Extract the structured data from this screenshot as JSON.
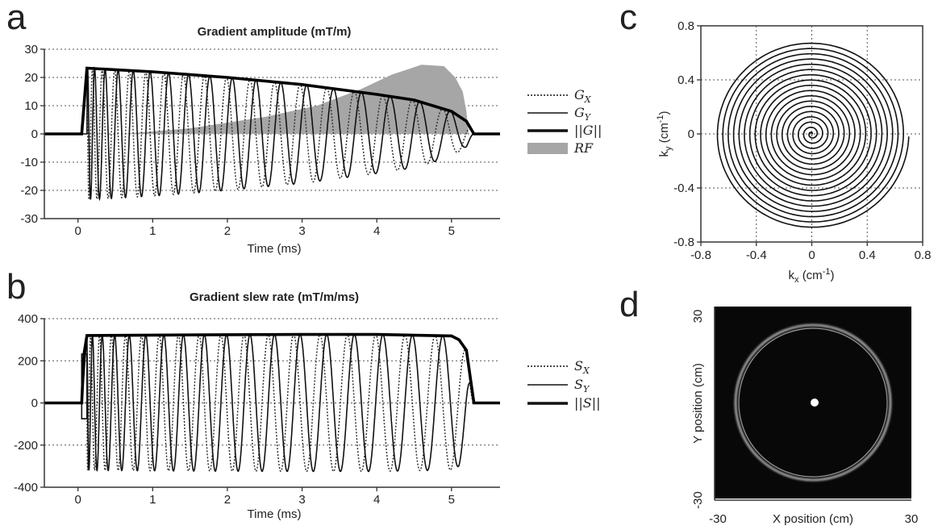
{
  "chart_data": [
    {
      "id": "a",
      "type": "line",
      "panel_label": "a",
      "title": "Gradient amplitude (mT/m)",
      "xlabel": "Time (ms)",
      "ylabel": "",
      "xlim": [
        -0.45,
        5.65
      ],
      "ylim": [
        -30,
        30
      ],
      "xticks": [
        "0",
        "1",
        "2",
        "3",
        "4",
        "5"
      ],
      "yticks": [
        "30",
        "20",
        "10",
        "0",
        "-10",
        "-20",
        "-30"
      ],
      "grid": "horizontal dotted",
      "legend_position": "right",
      "series": [
        {
          "name": "G",
          "sub": "X",
          "style": "dotted",
          "envelope_t": [
            0.12,
            1,
            2,
            3,
            4,
            4.5,
            5,
            5.2,
            5.3
          ],
          "envelope_amp": [
            23.3,
            22,
            20,
            17.5,
            14,
            12,
            8,
            4.5,
            0
          ]
        },
        {
          "name": "G",
          "sub": "Y",
          "style": "solid"
        },
        {
          "name": "||G||",
          "style": "thick",
          "t": [
            -0.45,
            0.05,
            0.12,
            1,
            2,
            3,
            4,
            4.5,
            5,
            5.2,
            5.3,
            5.65
          ],
          "v": [
            0,
            0,
            23.3,
            22,
            20,
            17.5,
            14,
            12,
            8,
            4.5,
            0,
            0
          ]
        },
        {
          "name": "RF",
          "style": "filled-gray",
          "t": [
            0.6,
            1.5,
            2.5,
            3.2,
            3.8,
            4.2,
            4.6,
            4.9,
            5.05,
            5.15,
            5.2,
            5.23
          ],
          "v": [
            0,
            2,
            6,
            10,
            16,
            21,
            24.5,
            24,
            20,
            15,
            8,
            0
          ]
        }
      ]
    },
    {
      "id": "b",
      "type": "line",
      "panel_label": "b",
      "title": "Gradient slew rate (mT/m/ms)",
      "xlabel": "Time (ms)",
      "ylabel": "",
      "xlim": [
        -0.45,
        5.65
      ],
      "ylim": [
        -400,
        400
      ],
      "xticks": [
        "0",
        "1",
        "2",
        "3",
        "4",
        "5"
      ],
      "yticks": [
        "400",
        "200",
        "0",
        "-200",
        "-400"
      ],
      "grid": "horizontal dotted",
      "legend_position": "right",
      "series": [
        {
          "name": "S",
          "sub": "X",
          "style": "dotted"
        },
        {
          "name": "S",
          "sub": "Y",
          "style": "solid"
        },
        {
          "name": "||S||",
          "style": "thick",
          "t": [
            -0.45,
            0.05,
            0.08,
            0.12,
            1,
            2,
            3,
            4,
            5,
            5.1,
            5.2,
            5.3,
            5.65
          ],
          "v": [
            0,
            0,
            232,
            320,
            322,
            324,
            325,
            325,
            318,
            300,
            250,
            0,
            0
          ]
        }
      ]
    },
    {
      "id": "c",
      "type": "line",
      "panel_label": "c",
      "title": "",
      "xlabel": "k",
      "xlabel_sub": "x",
      "xlabel_unit": "(cm",
      "xlabel_sup": "-1",
      "xlabel_close": ")",
      "ylabel": "k",
      "ylabel_sub": "y",
      "ylabel_unit": "(cm",
      "ylabel_sup": "-1",
      "ylabel_close": ")",
      "xlim": [
        -0.8,
        0.8
      ],
      "ylim": [
        -0.8,
        0.8
      ],
      "xticks": [
        "-0.8",
        "-0.4",
        "0",
        "0.4",
        "0.8"
      ],
      "yticks": [
        "0.8",
        "0.4",
        "0",
        "-0.4",
        "-0.8"
      ],
      "grid": "dotted",
      "spiral": {
        "turns": 18,
        "kmax": 0.7
      }
    },
    {
      "id": "d",
      "type": "image",
      "panel_label": "d",
      "xlabel": "X position (cm)",
      "ylabel": "Y position (cm)",
      "x_min_label": "-30",
      "x_max_label": "30",
      "y_min_label": "-30",
      "y_max_label": "30",
      "ring_radius_cm": 24,
      "center_dot": true
    }
  ]
}
